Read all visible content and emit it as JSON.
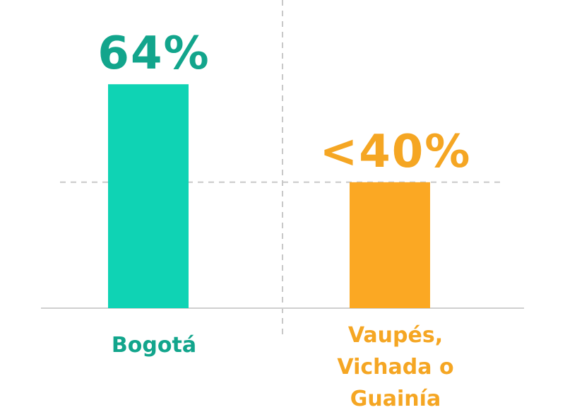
{
  "chart_data": {
    "type": "bar",
    "categories": [
      "Bogotá",
      "Vaupés, Vichada o Guainía"
    ],
    "values": [
      64,
      36
    ],
    "value_labels": [
      "64%",
      "<40%"
    ],
    "colors": [
      "#0fd3b4",
      "#fba823"
    ],
    "ylim": [
      0,
      80
    ]
  }
}
